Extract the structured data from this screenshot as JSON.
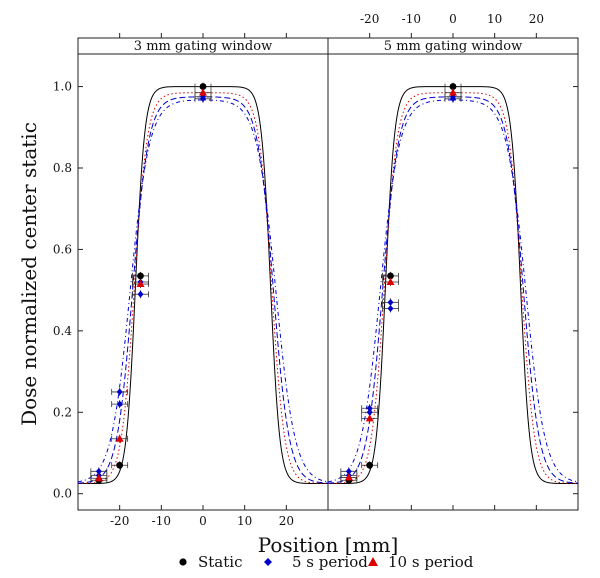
{
  "chart_data": {
    "type": "scatter",
    "xlabel": "Position [mm]",
    "ylabel": "Dose normalized center static",
    "xlim": [
      -30,
      30
    ],
    "ylim": [
      -0.04,
      1.08
    ],
    "x_ticks": [
      -20,
      -10,
      0,
      10,
      20
    ],
    "y_ticks": [
      0.0,
      0.2,
      0.4,
      0.6,
      0.8,
      1.0
    ],
    "x_tick_labels": [
      "-20",
      "-10",
      "0",
      "10",
      "20"
    ],
    "y_tick_labels": [
      "0.0",
      "0.2",
      "0.4",
      "0.6",
      "0.8",
      "1.0"
    ],
    "grid": false,
    "legend_position": "bottom",
    "legend": [
      {
        "name": "Static",
        "marker": "circle",
        "color": "#000000"
      },
      {
        "name": "5 s period",
        "marker": "diamond",
        "color": "#0000cc"
      },
      {
        "name": "10 s period",
        "marker": "triangle",
        "color": "#dd0000"
      }
    ],
    "panels": [
      {
        "title": "3 mm gating window",
        "points": {
          "static": [
            [
              -25,
              0.033
            ],
            [
              -20,
              0.07
            ],
            [
              -15,
              0.535
            ],
            [
              0,
              1.0
            ]
          ],
          "period_5s": [
            [
              -25,
              0.045
            ],
            [
              -25,
              0.055
            ],
            [
              -20,
              0.22
            ],
            [
              -20,
              0.25
            ],
            [
              -15,
              0.49
            ],
            [
              -15,
              0.52
            ],
            [
              0,
              0.97
            ],
            [
              0,
              0.975
            ]
          ],
          "period_10s": [
            [
              -25,
              0.038
            ],
            [
              -20,
              0.135
            ],
            [
              -15,
              0.515
            ],
            [
              0,
              0.985
            ]
          ]
        }
      },
      {
        "title": "5 mm gating window",
        "points": {
          "static": [
            [
              -25,
              0.033
            ],
            [
              -20,
              0.07
            ],
            [
              -15,
              0.535
            ],
            [
              0,
              1.0
            ]
          ],
          "period_5s": [
            [
              -25,
              0.045
            ],
            [
              -25,
              0.055
            ],
            [
              -20,
              0.2
            ],
            [
              -20,
              0.21
            ],
            [
              -15,
              0.455
            ],
            [
              -15,
              0.47
            ],
            [
              0,
              0.97
            ],
            [
              0,
              0.975
            ]
          ],
          "period_10s": [
            [
              -25,
              0.04
            ],
            [
              -20,
              0.185
            ],
            [
              -15,
              0.52
            ],
            [
              0,
              0.985
            ]
          ]
        }
      }
    ],
    "curves": {
      "static": {
        "plateau": 1.0,
        "edge": 16.2,
        "width": 1.1,
        "base": 0.025,
        "color": "#000000",
        "dash": ""
      },
      "period_10s": {
        "plateau": 0.985,
        "edge": 16.5,
        "width": 1.55,
        "base": 0.025,
        "color": "#dd0000",
        "dash": "1.5,2.5"
      },
      "period_5s_a": {
        "plateau": 0.975,
        "edge": 16.9,
        "width": 1.9,
        "base": 0.025,
        "color": "#0000cc",
        "dash": "6,3"
      },
      "period_5s_b": {
        "plateau": 0.968,
        "edge": 17.5,
        "width": 2.3,
        "base": 0.025,
        "color": "#0000cc",
        "dash": "4,3,1,3"
      }
    }
  }
}
